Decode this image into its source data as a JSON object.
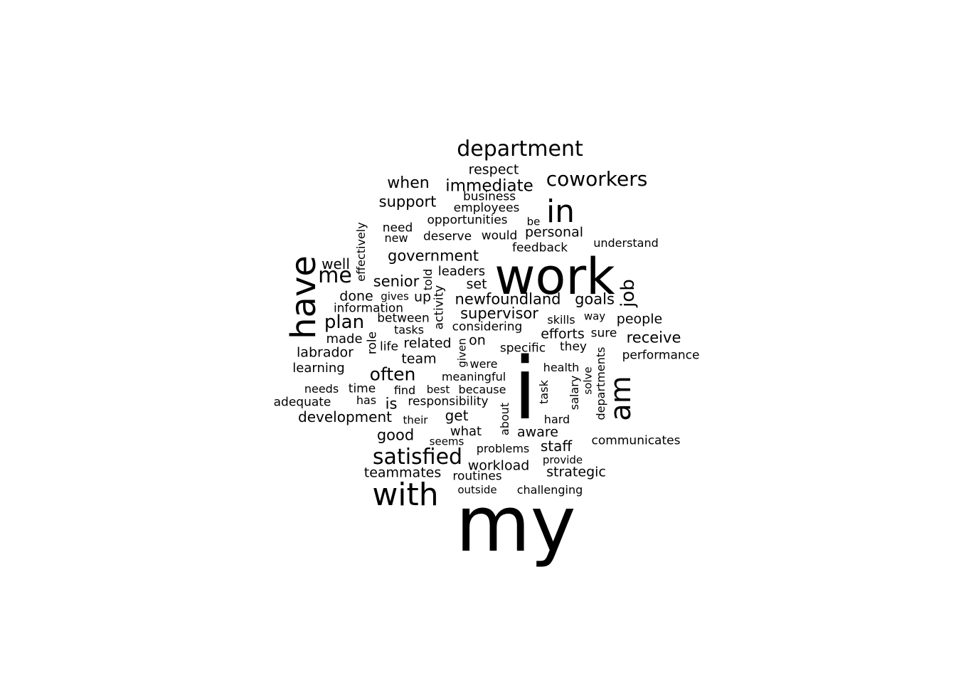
{
  "word_cloud": {
    "text_color": "#000000",
    "background_color": "#ffffff",
    "words": [
      {
        "text": "my",
        "vertical": false
      },
      {
        "text": "work",
        "vertical": false
      },
      {
        "text": "i",
        "vertical": false
      },
      {
        "text": "have",
        "vertical": true
      },
      {
        "text": "with",
        "vertical": false
      },
      {
        "text": "in",
        "vertical": false
      },
      {
        "text": "am",
        "vertical": true
      },
      {
        "text": "department",
        "vertical": false
      },
      {
        "text": "satisfied",
        "vertical": false
      },
      {
        "text": "coworkers",
        "vertical": false
      },
      {
        "text": "me",
        "vertical": false
      },
      {
        "text": "job",
        "vertical": true
      },
      {
        "text": "often",
        "vertical": false
      },
      {
        "text": "plan",
        "vertical": false
      },
      {
        "text": "immediate",
        "vertical": false
      },
      {
        "text": "government",
        "vertical": false
      },
      {
        "text": "newfoundland",
        "vertical": false
      },
      {
        "text": "supervisor",
        "vertical": false
      },
      {
        "text": "support",
        "vertical": false
      },
      {
        "text": "when",
        "vertical": false
      },
      {
        "text": "goals",
        "vertical": false
      },
      {
        "text": "senior",
        "vertical": false
      },
      {
        "text": "receive",
        "vertical": false
      },
      {
        "text": "development",
        "vertical": false
      },
      {
        "text": "good",
        "vertical": false
      },
      {
        "text": "teammates",
        "vertical": false
      },
      {
        "text": "respect",
        "vertical": false
      },
      {
        "text": "personal",
        "vertical": false
      },
      {
        "text": "leaders",
        "vertical": false
      },
      {
        "text": "well",
        "vertical": false
      },
      {
        "text": "team",
        "vertical": false
      },
      {
        "text": "is",
        "vertical": false
      },
      {
        "text": "get",
        "vertical": false
      },
      {
        "text": "workload",
        "vertical": false
      },
      {
        "text": "labrador",
        "vertical": false
      },
      {
        "text": "related",
        "vertical": false
      },
      {
        "text": "people",
        "vertical": false
      },
      {
        "text": "efforts",
        "vertical": false
      },
      {
        "text": "staff",
        "vertical": false
      },
      {
        "text": "strategic",
        "vertical": false
      },
      {
        "text": "aware",
        "vertical": false
      },
      {
        "text": "what",
        "vertical": false
      },
      {
        "text": "set",
        "vertical": false
      },
      {
        "text": "done",
        "vertical": false
      },
      {
        "text": "learning",
        "vertical": false
      },
      {
        "text": "up",
        "vertical": false
      },
      {
        "text": "on",
        "vertical": false
      },
      {
        "text": "opportunities",
        "vertical": false
      },
      {
        "text": "business",
        "vertical": false
      },
      {
        "text": "employees",
        "vertical": false
      },
      {
        "text": "need",
        "vertical": false
      },
      {
        "text": "would",
        "vertical": false
      },
      {
        "text": "deserve",
        "vertical": false
      },
      {
        "text": "feedback",
        "vertical": false
      },
      {
        "text": "between",
        "vertical": false
      },
      {
        "text": "considering",
        "vertical": false
      },
      {
        "text": "made",
        "vertical": false
      },
      {
        "text": "information",
        "vertical": false
      },
      {
        "text": "specific",
        "vertical": false
      },
      {
        "text": "they",
        "vertical": false
      },
      {
        "text": "performance",
        "vertical": false
      },
      {
        "text": "time",
        "vertical": false
      },
      {
        "text": "adequate",
        "vertical": false
      },
      {
        "text": "needs",
        "vertical": false
      },
      {
        "text": "responsibility",
        "vertical": false
      },
      {
        "text": "meaningful",
        "vertical": false
      },
      {
        "text": "communicates",
        "vertical": false
      },
      {
        "text": "problems",
        "vertical": false
      },
      {
        "text": "routines",
        "vertical": false
      },
      {
        "text": "challenging",
        "vertical": false
      },
      {
        "text": "understand",
        "vertical": false
      },
      {
        "text": "skills",
        "vertical": false
      },
      {
        "text": "sure",
        "vertical": false
      },
      {
        "text": "way",
        "vertical": false
      },
      {
        "text": "health",
        "vertical": false
      },
      {
        "text": "hard",
        "vertical": false
      },
      {
        "text": "provide",
        "vertical": false
      },
      {
        "text": "outside",
        "vertical": false
      },
      {
        "text": "new",
        "vertical": false
      },
      {
        "text": "be",
        "vertical": false
      },
      {
        "text": "gives",
        "vertical": false
      },
      {
        "text": "tasks",
        "vertical": false
      },
      {
        "text": "life",
        "vertical": false
      },
      {
        "text": "were",
        "vertical": false
      },
      {
        "text": "has",
        "vertical": false
      },
      {
        "text": "find",
        "vertical": false
      },
      {
        "text": "best",
        "vertical": false
      },
      {
        "text": "because",
        "vertical": false
      },
      {
        "text": "their",
        "vertical": false
      },
      {
        "text": "seems",
        "vertical": false
      },
      {
        "text": "effectively",
        "vertical": true
      },
      {
        "text": "told",
        "vertical": true
      },
      {
        "text": "activity",
        "vertical": true
      },
      {
        "text": "role",
        "vertical": true
      },
      {
        "text": "given",
        "vertical": true
      },
      {
        "text": "about",
        "vertical": true
      },
      {
        "text": "task",
        "vertical": true
      },
      {
        "text": "salary",
        "vertical": true
      },
      {
        "text": "solve",
        "vertical": true
      },
      {
        "text": "departments",
        "vertical": true
      }
    ]
  }
}
